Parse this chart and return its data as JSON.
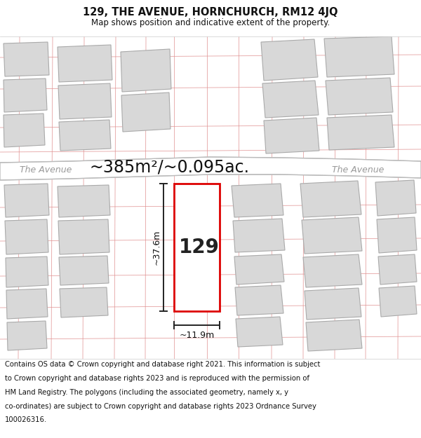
{
  "title_line1": "129, THE AVENUE, HORNCHURCH, RM12 4JQ",
  "title_line2": "Map shows position and indicative extent of the property.",
  "area_label": "~385m²/~0.095ac.",
  "street_label_left": "The Avenue",
  "street_label_right": "The Avenue",
  "property_number": "129",
  "dim_height": "~37.6m",
  "dim_width": "~11.9m",
  "footer_lines": [
    "Contains OS data © Crown copyright and database right 2021. This information is subject",
    "to Crown copyright and database rights 2023 and is reproduced with the permission of",
    "HM Land Registry. The polygons (including the associated geometry, namely x, y",
    "co-ordinates) are subject to Crown copyright and database rights 2023 Ordnance Survey",
    "100026316."
  ],
  "map_bg": "#eeeceb",
  "road_color": "#ffffff",
  "road_border_color": "#bbbbbb",
  "plot_outline_color": "#dd0000",
  "building_fill": "#d8d8d8",
  "building_edge": "#aaaaaa",
  "cadastral_color": "#e09090",
  "dim_line_color": "#222222",
  "title_fontsize": 10.5,
  "subtitle_fontsize": 8.5,
  "area_fontsize": 17,
  "street_fontsize": 9,
  "number_fontsize": 20,
  "dim_fontsize": 9,
  "footer_fontsize": 7.2
}
